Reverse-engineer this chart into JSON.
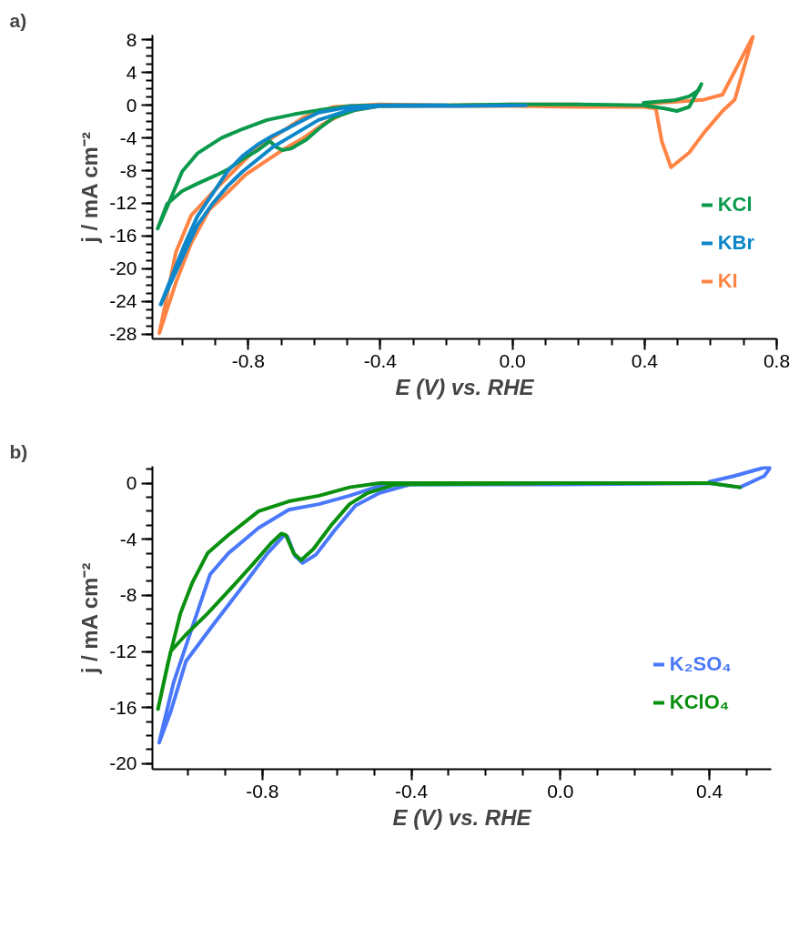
{
  "chart_data": [
    {
      "type": "line",
      "title": "a)",
      "xlabel": "E (V) vs. RHE",
      "ylabel": "j / mA cm⁻²",
      "xlim": [
        -1.09,
        0.8
      ],
      "ylim": [
        -28.6,
        8.6
      ],
      "xticks": [
        -0.8,
        -0.4,
        {
          "value": 0,
          "label": "0.0"
        },
        0.4,
        0.8
      ],
      "yticks": [
        8,
        4,
        0,
        -4,
        -8,
        -12,
        -16,
        -20,
        -24,
        -28
      ],
      "grid": false,
      "legend": "right",
      "series": [
        {
          "name": "KCl",
          "color": "#0b9a4c",
          "x": [
            0.2,
            0.0,
            -0.2,
            -0.403,
            -0.477,
            -0.541,
            -0.587,
            -0.624,
            -0.67,
            -0.697,
            -0.716,
            -0.734,
            -0.771,
            -0.817,
            -0.863,
            -0.899,
            -0.954,
            -1.0,
            -1.046,
            -1.074,
            -1.046,
            -1.0,
            -0.954,
            -0.881,
            -0.817,
            -0.743,
            -0.661,
            -0.587,
            -0.495,
            -0.403,
            -0.2,
            0.0,
            0.2,
            0.397,
            0.461,
            0.498,
            0.535,
            0.572,
            0.563,
            0.535,
            0.489,
            0.397
          ],
          "values": [
            0.1,
            0.1,
            0.0,
            -0.1,
            -0.6,
            -1.5,
            -2.9,
            -4.2,
            -5.3,
            -5.5,
            -5.1,
            -4.4,
            -5.5,
            -6.6,
            -7.9,
            -8.6,
            -9.6,
            -10.5,
            -12.1,
            -15.1,
            -12.5,
            -8.1,
            -5.9,
            -4.0,
            -2.9,
            -1.8,
            -1.1,
            -0.6,
            -0.1,
            0.0,
            0.0,
            0.1,
            0.1,
            0.0,
            -0.4,
            -0.7,
            -0.2,
            2.6,
            1.8,
            1.1,
            0.6,
            0.3
          ]
        },
        {
          "name": "KBr",
          "color": "#0d87c9",
          "x": [
            0.04,
            -0.2,
            -0.403,
            -0.495,
            -0.587,
            -0.679,
            -0.725,
            -0.771,
            -0.817,
            -0.863,
            -0.909,
            -0.954,
            -1.0,
            -1.065,
            -1.028,
            -0.991,
            -0.954,
            -0.899,
            -0.863,
            -0.817,
            -0.771,
            -0.725,
            -0.679,
            -0.633,
            -0.587,
            -0.495,
            -0.403,
            -0.2
          ],
          "values": [
            0.0,
            -0.1,
            -0.1,
            -0.6,
            -1.8,
            -4.0,
            -5.1,
            -6.6,
            -8.1,
            -9.9,
            -12.1,
            -14.7,
            -18.7,
            -24.4,
            -20.6,
            -16.9,
            -13.6,
            -10.3,
            -8.1,
            -6.2,
            -4.8,
            -3.7,
            -2.8,
            -1.8,
            -0.9,
            -0.2,
            0.0,
            0.0
          ]
        },
        {
          "name": "KI",
          "color": "#ff8444",
          "x": [
            0.2,
            0.0,
            -0.2,
            -0.403,
            -0.541,
            -0.633,
            -0.716,
            -0.771,
            -0.835,
            -0.899,
            -0.973,
            -1.019,
            -1.069,
            -1.019,
            -0.973,
            -0.918,
            -0.863,
            -0.808,
            -0.753,
            -0.697,
            -0.633,
            -0.569,
            -0.495,
            -0.403,
            -0.2,
            0.0,
            0.2,
            0.305,
            0.397,
            0.434,
            0.452,
            0.48,
            0.535,
            0.581,
            0.636,
            0.673,
            0.728,
            0.69,
            0.636,
            0.581,
            0.489,
            0.397
          ],
          "values": [
            0.1,
            0.1,
            0.0,
            0.1,
            -0.2,
            -1.5,
            -3.7,
            -5.1,
            -7.7,
            -10.3,
            -13.5,
            -18.0,
            -27.9,
            -21.7,
            -16.9,
            -12.8,
            -10.7,
            -8.5,
            -7.0,
            -5.5,
            -4.0,
            -2.2,
            -0.7,
            -0.1,
            -0.1,
            -0.1,
            -0.2,
            -0.2,
            -0.2,
            -0.4,
            -4.4,
            -7.6,
            -5.8,
            -3.3,
            -0.7,
            0.7,
            8.4,
            5.5,
            1.3,
            0.7,
            0.4,
            0.2
          ]
        }
      ]
    },
    {
      "type": "line",
      "title": "b)",
      "xlabel": "E (V) vs. RHE",
      "ylabel": "j / mA cm⁻²",
      "xlim": [
        -1.095,
        0.566
      ],
      "ylim": [
        -20.4,
        1.2
      ],
      "xticks": [
        -0.8,
        -0.4,
        {
          "value": 0,
          "label": "0.0"
        },
        0.4
      ],
      "yticks": [
        0,
        -4,
        -8,
        -12,
        -16,
        -20
      ],
      "grid": false,
      "legend": "bottom right",
      "series": [
        {
          "name": "K₂SO₄",
          "color": "#4a78fa",
          "x": [
            0.0,
            -0.404,
            -0.485,
            -0.566,
            -0.648,
            -0.729,
            -0.81,
            -0.891,
            -0.94,
            -1.005,
            -1.038,
            -1.077,
            -1.046,
            -1.005,
            -0.932,
            -0.851,
            -0.786,
            -0.741,
            -0.733,
            -0.712,
            -0.692,
            -0.656,
            -0.607,
            -0.55,
            -0.485,
            -0.404,
            0.0,
            0.4,
            0.482,
            0.547,
            0.563,
            0.547,
            0.466,
            0.4
          ],
          "values": [
            0.0,
            0.0,
            -0.2,
            -0.9,
            -1.5,
            -1.9,
            -3.2,
            -5.0,
            -6.5,
            -11.6,
            -14.2,
            -18.5,
            -16.3,
            -12.7,
            -10.1,
            -7.3,
            -5.0,
            -3.7,
            -3.8,
            -5.2,
            -5.7,
            -5.1,
            -3.4,
            -1.6,
            -0.7,
            -0.1,
            -0.1,
            0.0,
            -0.3,
            0.5,
            1.1,
            1.1,
            0.5,
            0.1
          ]
        },
        {
          "name": "KClO₄",
          "color": "#0a900f",
          "x": [
            0.0,
            -0.485,
            -0.566,
            -0.648,
            -0.729,
            -0.81,
            -0.891,
            -0.947,
            -0.988,
            -1.02,
            -1.054,
            -1.08,
            -1.046,
            -1.005,
            -0.947,
            -0.891,
            -0.826,
            -0.777,
            -0.749,
            -0.737,
            -0.716,
            -0.696,
            -0.663,
            -0.615,
            -0.566,
            -0.517,
            -0.444,
            0.0,
            0.4,
            0.482
          ],
          "values": [
            0.0,
            0.0,
            -0.3,
            -0.9,
            -1.3,
            -2.0,
            -3.7,
            -5.0,
            -7.1,
            -9.3,
            -12.9,
            -16.1,
            -12.0,
            -10.8,
            -9.3,
            -7.7,
            -5.8,
            -4.3,
            -3.6,
            -3.7,
            -5.0,
            -5.5,
            -4.7,
            -3.0,
            -1.5,
            -0.7,
            -0.1,
            0.0,
            0.0,
            -0.3
          ]
        }
      ]
    }
  ]
}
